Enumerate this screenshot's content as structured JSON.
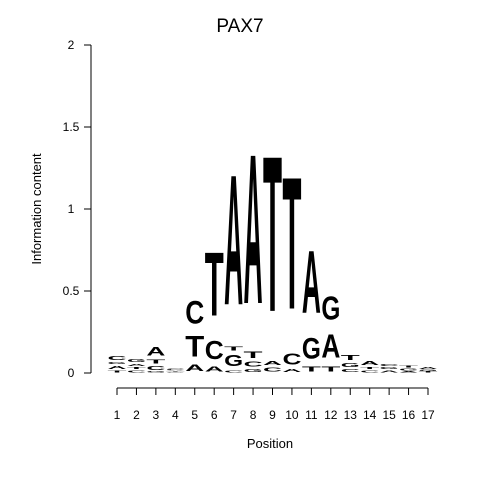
{
  "chart_data": {
    "type": "sequence_logo",
    "title": "PAX7",
    "xlabel": "Position",
    "ylabel": "Information content",
    "ylim": [
      0,
      2
    ],
    "yticks": [
      "0",
      "0.5",
      "1",
      "1.5",
      "2"
    ],
    "positions": [
      "1",
      "2",
      "3",
      "4",
      "5",
      "6",
      "7",
      "8",
      "9",
      "10",
      "11",
      "12",
      "13",
      "14",
      "15",
      "16",
      "17"
    ],
    "colors": {
      "A": "#00dd00",
      "C": "#0000ee",
      "G": "#ffa500",
      "T": "#ff0000"
    },
    "columns": [
      [
        {
          "l": "T",
          "h": 0.02
        },
        {
          "l": "A",
          "h": 0.03
        },
        {
          "l": "G",
          "h": 0.02
        },
        {
          "l": "C",
          "h": 0.04
        }
      ],
      [
        {
          "l": "C",
          "h": 0.02
        },
        {
          "l": "T",
          "h": 0.02
        },
        {
          "l": "A",
          "h": 0.02
        },
        {
          "l": "G",
          "h": 0.03
        }
      ],
      [
        {
          "l": "G",
          "h": 0.01
        },
        {
          "l": "C",
          "h": 0.04
        },
        {
          "l": "T",
          "h": 0.04
        },
        {
          "l": "A",
          "h": 0.08
        }
      ],
      [
        {
          "l": "G",
          "h": 0.005
        },
        {
          "l": "T",
          "h": 0.005
        },
        {
          "l": "A",
          "h": 0.005
        },
        {
          "l": "C",
          "h": 0.01
        }
      ],
      [
        {
          "l": "A",
          "h": 0.06
        },
        {
          "l": "T",
          "h": 0.2
        },
        {
          "l": "C",
          "h": 0.22
        }
      ],
      [
        {
          "l": "A",
          "h": 0.05
        },
        {
          "l": "C",
          "h": 0.18
        },
        {
          "l": "T",
          "h": 0.62
        }
      ],
      [
        {
          "l": "C",
          "h": 0.02
        },
        {
          "l": "G",
          "h": 0.11
        },
        {
          "l": "T",
          "h": 0.04
        },
        {
          "l": "A",
          "h": 1.27
        }
      ],
      [
        {
          "l": "G",
          "h": 0.03
        },
        {
          "l": "C",
          "h": 0.05
        },
        {
          "l": "T",
          "h": 0.06
        },
        {
          "l": "A",
          "h": 1.46
        }
      ],
      [
        {
          "l": "C",
          "h": 0.04
        },
        {
          "l": "A",
          "h": 0.04
        },
        {
          "l": "T",
          "h": 1.52
        }
      ],
      [
        {
          "l": "A",
          "h": 0.03
        },
        {
          "l": "C",
          "h": 0.11
        },
        {
          "l": "T",
          "h": 1.29
        }
      ],
      [
        {
          "l": "T",
          "h": 0.05
        },
        {
          "l": "G",
          "h": 0.2
        },
        {
          "l": "A",
          "h": 0.61
        }
      ],
      [
        {
          "l": "T",
          "h": 0.05
        },
        {
          "l": "A",
          "h": 0.23
        },
        {
          "l": "G",
          "h": 0.23
        }
      ],
      [
        {
          "l": "C",
          "h": 0.03
        },
        {
          "l": "G",
          "h": 0.04
        },
        {
          "l": "T",
          "h": 0.05
        }
      ],
      [
        {
          "l": "C",
          "h": 0.02
        },
        {
          "l": "T",
          "h": 0.02
        },
        {
          "l": "A",
          "h": 0.04
        }
      ],
      [
        {
          "l": "A",
          "h": 0.02
        },
        {
          "l": "G",
          "h": 0.02
        },
        {
          "l": "C",
          "h": 0.02
        }
      ],
      [
        {
          "l": "A",
          "h": 0.01
        },
        {
          "l": "G",
          "h": 0.02
        },
        {
          "l": "T",
          "h": 0.02
        }
      ],
      [
        {
          "l": "T",
          "h": 0.01
        },
        {
          "l": "G",
          "h": 0.01
        },
        {
          "l": "A",
          "h": 0.02
        }
      ]
    ]
  }
}
